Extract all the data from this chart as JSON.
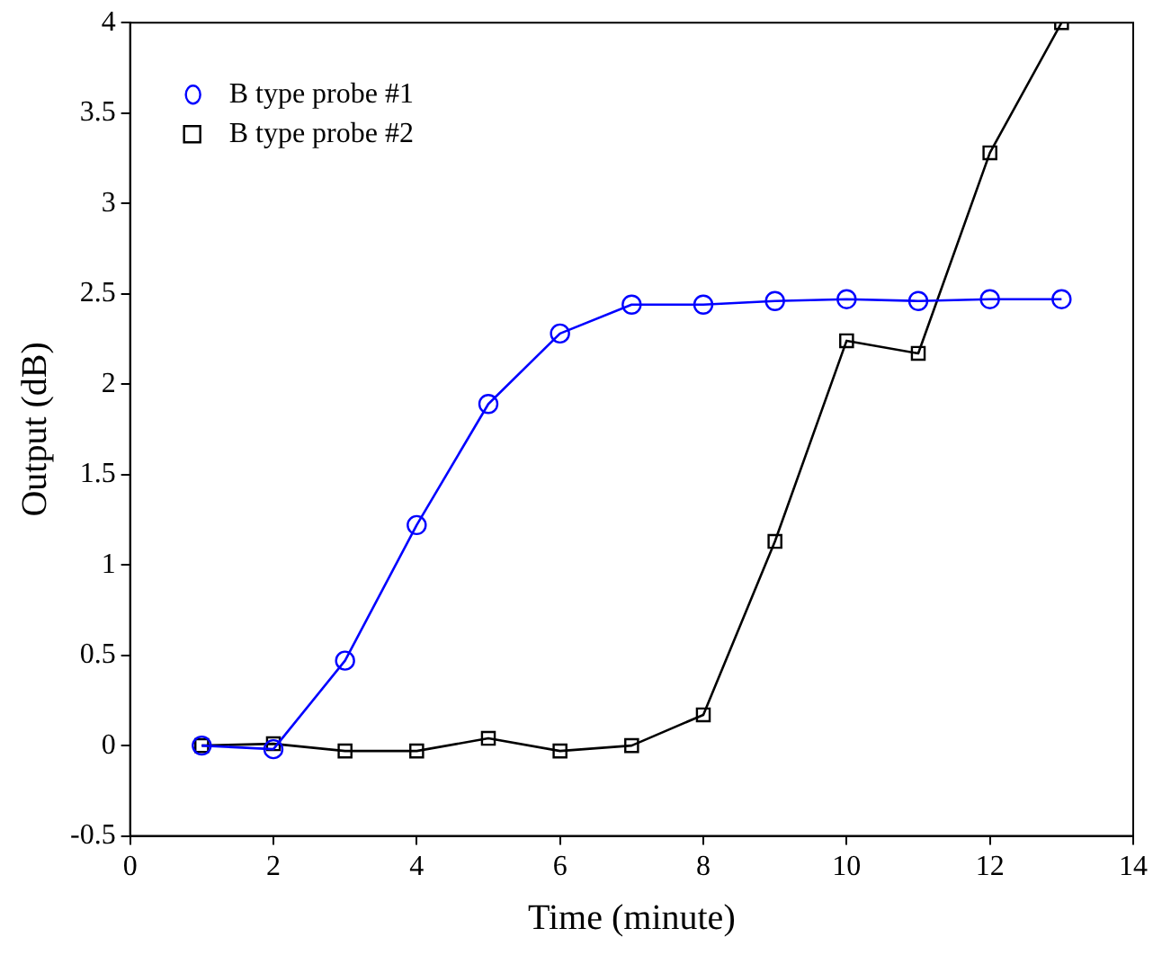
{
  "chart_data": {
    "type": "line",
    "xlabel": "Time (minute)",
    "ylabel": "Output (dB)",
    "x": [
      1,
      2,
      3,
      4,
      5,
      6,
      7,
      8,
      9,
      10,
      11,
      12,
      13
    ],
    "series": [
      {
        "name": "B type probe #1",
        "color": "#0000ff",
        "marker": "circle",
        "values": [
          0.0,
          -0.02,
          0.47,
          1.22,
          1.89,
          2.28,
          2.44,
          2.44,
          2.46,
          2.47,
          2.46,
          2.47,
          2.47
        ]
      },
      {
        "name": "B type probe #2",
        "color": "#000000",
        "marker": "square",
        "values": [
          0.0,
          0.01,
          -0.03,
          -0.03,
          0.04,
          -0.03,
          0.0,
          0.17,
          1.13,
          2.24,
          2.17,
          3.28,
          4.0
        ]
      }
    ],
    "xlim": [
      0,
      14
    ],
    "xticks": [
      0,
      2,
      4,
      6,
      8,
      10,
      12,
      14
    ],
    "ylim": [
      -0.5,
      4
    ],
    "yticks": [
      -0.5,
      0,
      0.5,
      1,
      1.5,
      2,
      2.5,
      3,
      3.5,
      4
    ],
    "grid": false,
    "legend": "top left",
    "line_style": "solid"
  }
}
